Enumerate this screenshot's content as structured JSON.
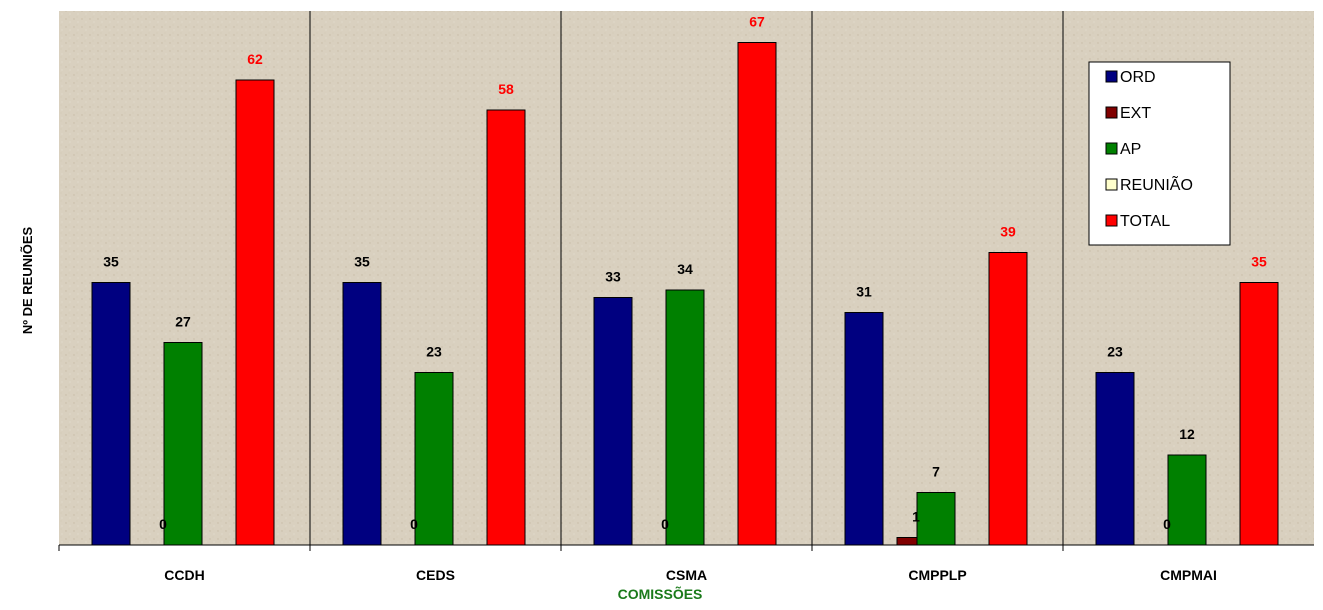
{
  "chart_data": {
    "type": "bar",
    "title": "",
    "xlabel": "COMISSÕES",
    "ylabel": "Nº DE REUNIÕES",
    "categories": [
      "CCDH",
      "CEDS",
      "CSMA",
      "CMPPLP",
      "CMPMAI"
    ],
    "ylim": [
      0,
      70
    ],
    "series": [
      {
        "name": "ORD",
        "color": "#000080",
        "values": [
          35,
          35,
          33,
          31,
          23
        ]
      },
      {
        "name": "EXT",
        "color": "#800000",
        "values": [
          0,
          0,
          0,
          1,
          0
        ]
      },
      {
        "name": "AP",
        "color": "#008000",
        "values": [
          27,
          23,
          34,
          7,
          12
        ]
      },
      {
        "name": "REUNIÃO",
        "color": "#FFFFCC",
        "values": [
          null,
          null,
          null,
          null,
          null
        ]
      },
      {
        "name": "TOTAL",
        "color": "#FF0000",
        "values": [
          62,
          58,
          67,
          39,
          35
        ]
      }
    ],
    "grid": false,
    "legend": "top-right",
    "data_labels": true,
    "total_label_color": "#FF0000",
    "plot_background": "#d9d0bf"
  }
}
